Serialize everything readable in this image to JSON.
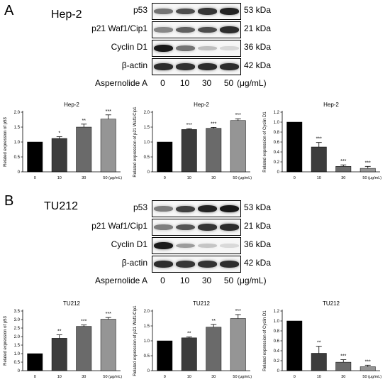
{
  "panels": [
    {
      "letter": "A",
      "cell_line": "Hep-2",
      "blot": {
        "proteins": [
          "p53",
          "p21 Waf1/Cip1",
          "Cyclin D1",
          "β-actin"
        ],
        "kda": [
          "53 kDa",
          "21 kDa",
          "36 kDa",
          "42 kDa"
        ],
        "treatment_label": "Aspernolide A",
        "doses": [
          "0",
          "10",
          "30",
          "50"
        ],
        "unit": "(μg/mL)",
        "band_intensity": [
          [
            0.55,
            0.75,
            0.85,
            0.95
          ],
          [
            0.45,
            0.65,
            0.75,
            0.9
          ],
          [
            1.0,
            0.55,
            0.18,
            0.06
          ],
          [
            0.9,
            0.88,
            0.9,
            0.9
          ]
        ]
      }
    },
    {
      "letter": "B",
      "cell_line": "TU212",
      "blot": {
        "proteins": [
          "p53",
          "p21 Waf1/Cip1",
          "Cyclin D1",
          "β-actin"
        ],
        "kda": [
          "53 kDa",
          "21 kDa",
          "36 kDa",
          "42 kDa"
        ],
        "treatment_label": "Aspernolide A",
        "doses": [
          "0",
          "10",
          "30",
          "50"
        ],
        "unit": "(μg/mL)",
        "band_intensity": [
          [
            0.5,
            0.8,
            0.95,
            1.0
          ],
          [
            0.5,
            0.7,
            0.85,
            0.9
          ],
          [
            1.0,
            0.35,
            0.15,
            0.05
          ],
          [
            0.9,
            0.85,
            0.88,
            0.9
          ]
        ]
      }
    }
  ],
  "chart_data": [
    {
      "type": "bar",
      "title": "Hep-2",
      "ylabel": "Related expression of p53",
      "categories": [
        "0",
        "10",
        "30",
        "50 (μg/mL)"
      ],
      "values": [
        1.0,
        1.12,
        1.5,
        1.77
      ],
      "errors": [
        0.0,
        0.06,
        0.1,
        0.14
      ],
      "significance": [
        "",
        "*",
        "**",
        "***"
      ],
      "ylim": [
        0,
        2.0
      ],
      "yticks": [
        "0",
        "0.5",
        "1.0",
        "1.5",
        "2.0"
      ]
    },
    {
      "type": "bar",
      "title": "Hep-2",
      "ylabel": "Related expression of p21 Waf1/Cip1",
      "categories": [
        "0",
        "10",
        "30",
        "50 (μg/mL)"
      ],
      "values": [
        1.0,
        1.42,
        1.46,
        1.72
      ],
      "errors": [
        0.0,
        0.03,
        0.03,
        0.06
      ],
      "significance": [
        "",
        "***",
        "***",
        "***"
      ],
      "ylim": [
        0,
        2.0
      ],
      "yticks": [
        "0",
        "0.5",
        "1.0",
        "1.5",
        "2.0"
      ]
    },
    {
      "type": "bar",
      "title": "Hep-2",
      "ylabel": "Related expression of Cyclin D1",
      "categories": [
        "0",
        "10",
        "30",
        "50 (μg/mL)"
      ],
      "values": [
        1.0,
        0.5,
        0.11,
        0.07
      ],
      "errors": [
        0.0,
        0.09,
        0.03,
        0.04
      ],
      "significance": [
        "",
        "***",
        "***",
        "***"
      ],
      "ylim": [
        0,
        1.2
      ],
      "yticks": [
        "0",
        "0.2",
        "0.4",
        "0.6",
        "0.8",
        "1.0",
        "1.2"
      ]
    },
    {
      "type": "bar",
      "title": "TU212",
      "ylabel": "Related expression of p53",
      "categories": [
        "0",
        "10",
        "30",
        "50 (μg/mL)"
      ],
      "values": [
        1.0,
        1.9,
        2.6,
        3.02
      ],
      "errors": [
        0.0,
        0.2,
        0.08,
        0.1
      ],
      "significance": [
        "",
        "**",
        "***",
        "***"
      ],
      "ylim": [
        0,
        3.5
      ],
      "yticks": [
        "0",
        "0.5",
        "1.0",
        "1.5",
        "2.0",
        "2.5",
        "3.0",
        "3.5"
      ]
    },
    {
      "type": "bar",
      "title": "TU212",
      "ylabel": "Related expression of p21 Waf1/Cip1",
      "categories": [
        "0",
        "10",
        "30",
        "50 (μg/mL)"
      ],
      "values": [
        1.0,
        1.1,
        1.46,
        1.75
      ],
      "errors": [
        0.0,
        0.03,
        0.09,
        0.13
      ],
      "significance": [
        "",
        "**",
        "**",
        "***"
      ],
      "ylim": [
        0,
        2.0
      ],
      "yticks": [
        "0",
        "0.5",
        "1.0",
        "1.5",
        "2.0"
      ]
    },
    {
      "type": "bar",
      "title": "TU212",
      "ylabel": "Related expression of Cyclin D1",
      "categories": [
        "0",
        "10",
        "30",
        "50 (μg/mL)"
      ],
      "values": [
        1.0,
        0.35,
        0.17,
        0.08
      ],
      "errors": [
        0.0,
        0.14,
        0.05,
        0.03
      ],
      "significance": [
        "",
        "**",
        "***",
        "***"
      ],
      "ylim": [
        0,
        1.2
      ],
      "yticks": [
        "0",
        "0.2",
        "0.4",
        "0.6",
        "0.8",
        "1.0",
        "1.2"
      ]
    }
  ]
}
